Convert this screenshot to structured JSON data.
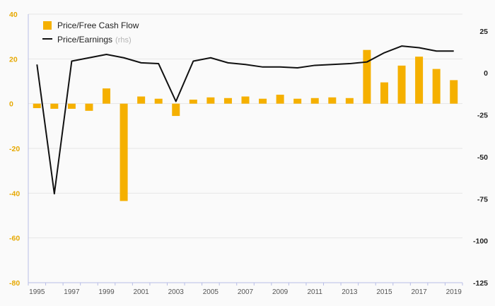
{
  "chart_data": {
    "type": "bar+line",
    "x": [
      1995,
      1996,
      1997,
      1998,
      1999,
      2000,
      2001,
      2002,
      2003,
      2004,
      2005,
      2006,
      2007,
      2008,
      2009,
      2010,
      2011,
      2012,
      2013,
      2014,
      2015,
      2016,
      2017,
      2018,
      2019
    ],
    "x_tick_labels": [
      "1995",
      "1997",
      "1999",
      "2001",
      "2003",
      "2005",
      "2007",
      "2009",
      "2011",
      "2013",
      "2015",
      "2017",
      "2019"
    ],
    "series": [
      {
        "name": "Price/Free Cash Flow",
        "kind": "bar",
        "axis": "left",
        "color": "#f5b000",
        "values": [
          -2,
          -2.3,
          -2.3,
          -3.2,
          6.8,
          -43.5,
          3.2,
          2.2,
          -5.5,
          1.8,
          2.8,
          2.5,
          3.2,
          2.2,
          4.0,
          2.2,
          2.5,
          2.8,
          2.5,
          24.0,
          9.5,
          17.0,
          21.0,
          15.5,
          10.5
        ]
      },
      {
        "name": "Price/Earnings",
        "name_suffix": "(rhs)",
        "kind": "line",
        "axis": "right",
        "color": "#111111",
        "values": [
          5,
          -72,
          7,
          9,
          11,
          9,
          6,
          5.5,
          -17,
          7,
          9,
          6,
          5,
          3.5,
          3.5,
          3,
          4.5,
          5,
          5.5,
          6.5,
          12,
          16,
          15,
          13,
          13
        ]
      }
    ],
    "left_axis": {
      "ylim": [
        -80,
        40
      ],
      "ticks": [
        "40",
        "20",
        "0",
        "-20",
        "-40",
        "-60",
        "-80"
      ],
      "color": "#e6a800"
    },
    "right_axis": {
      "ylim": [
        -125,
        35
      ],
      "ticks": [
        "25",
        "0",
        "-25",
        "-50",
        "-75",
        "-100",
        "-125"
      ]
    },
    "grid": true,
    "legend_position": "top-left"
  }
}
